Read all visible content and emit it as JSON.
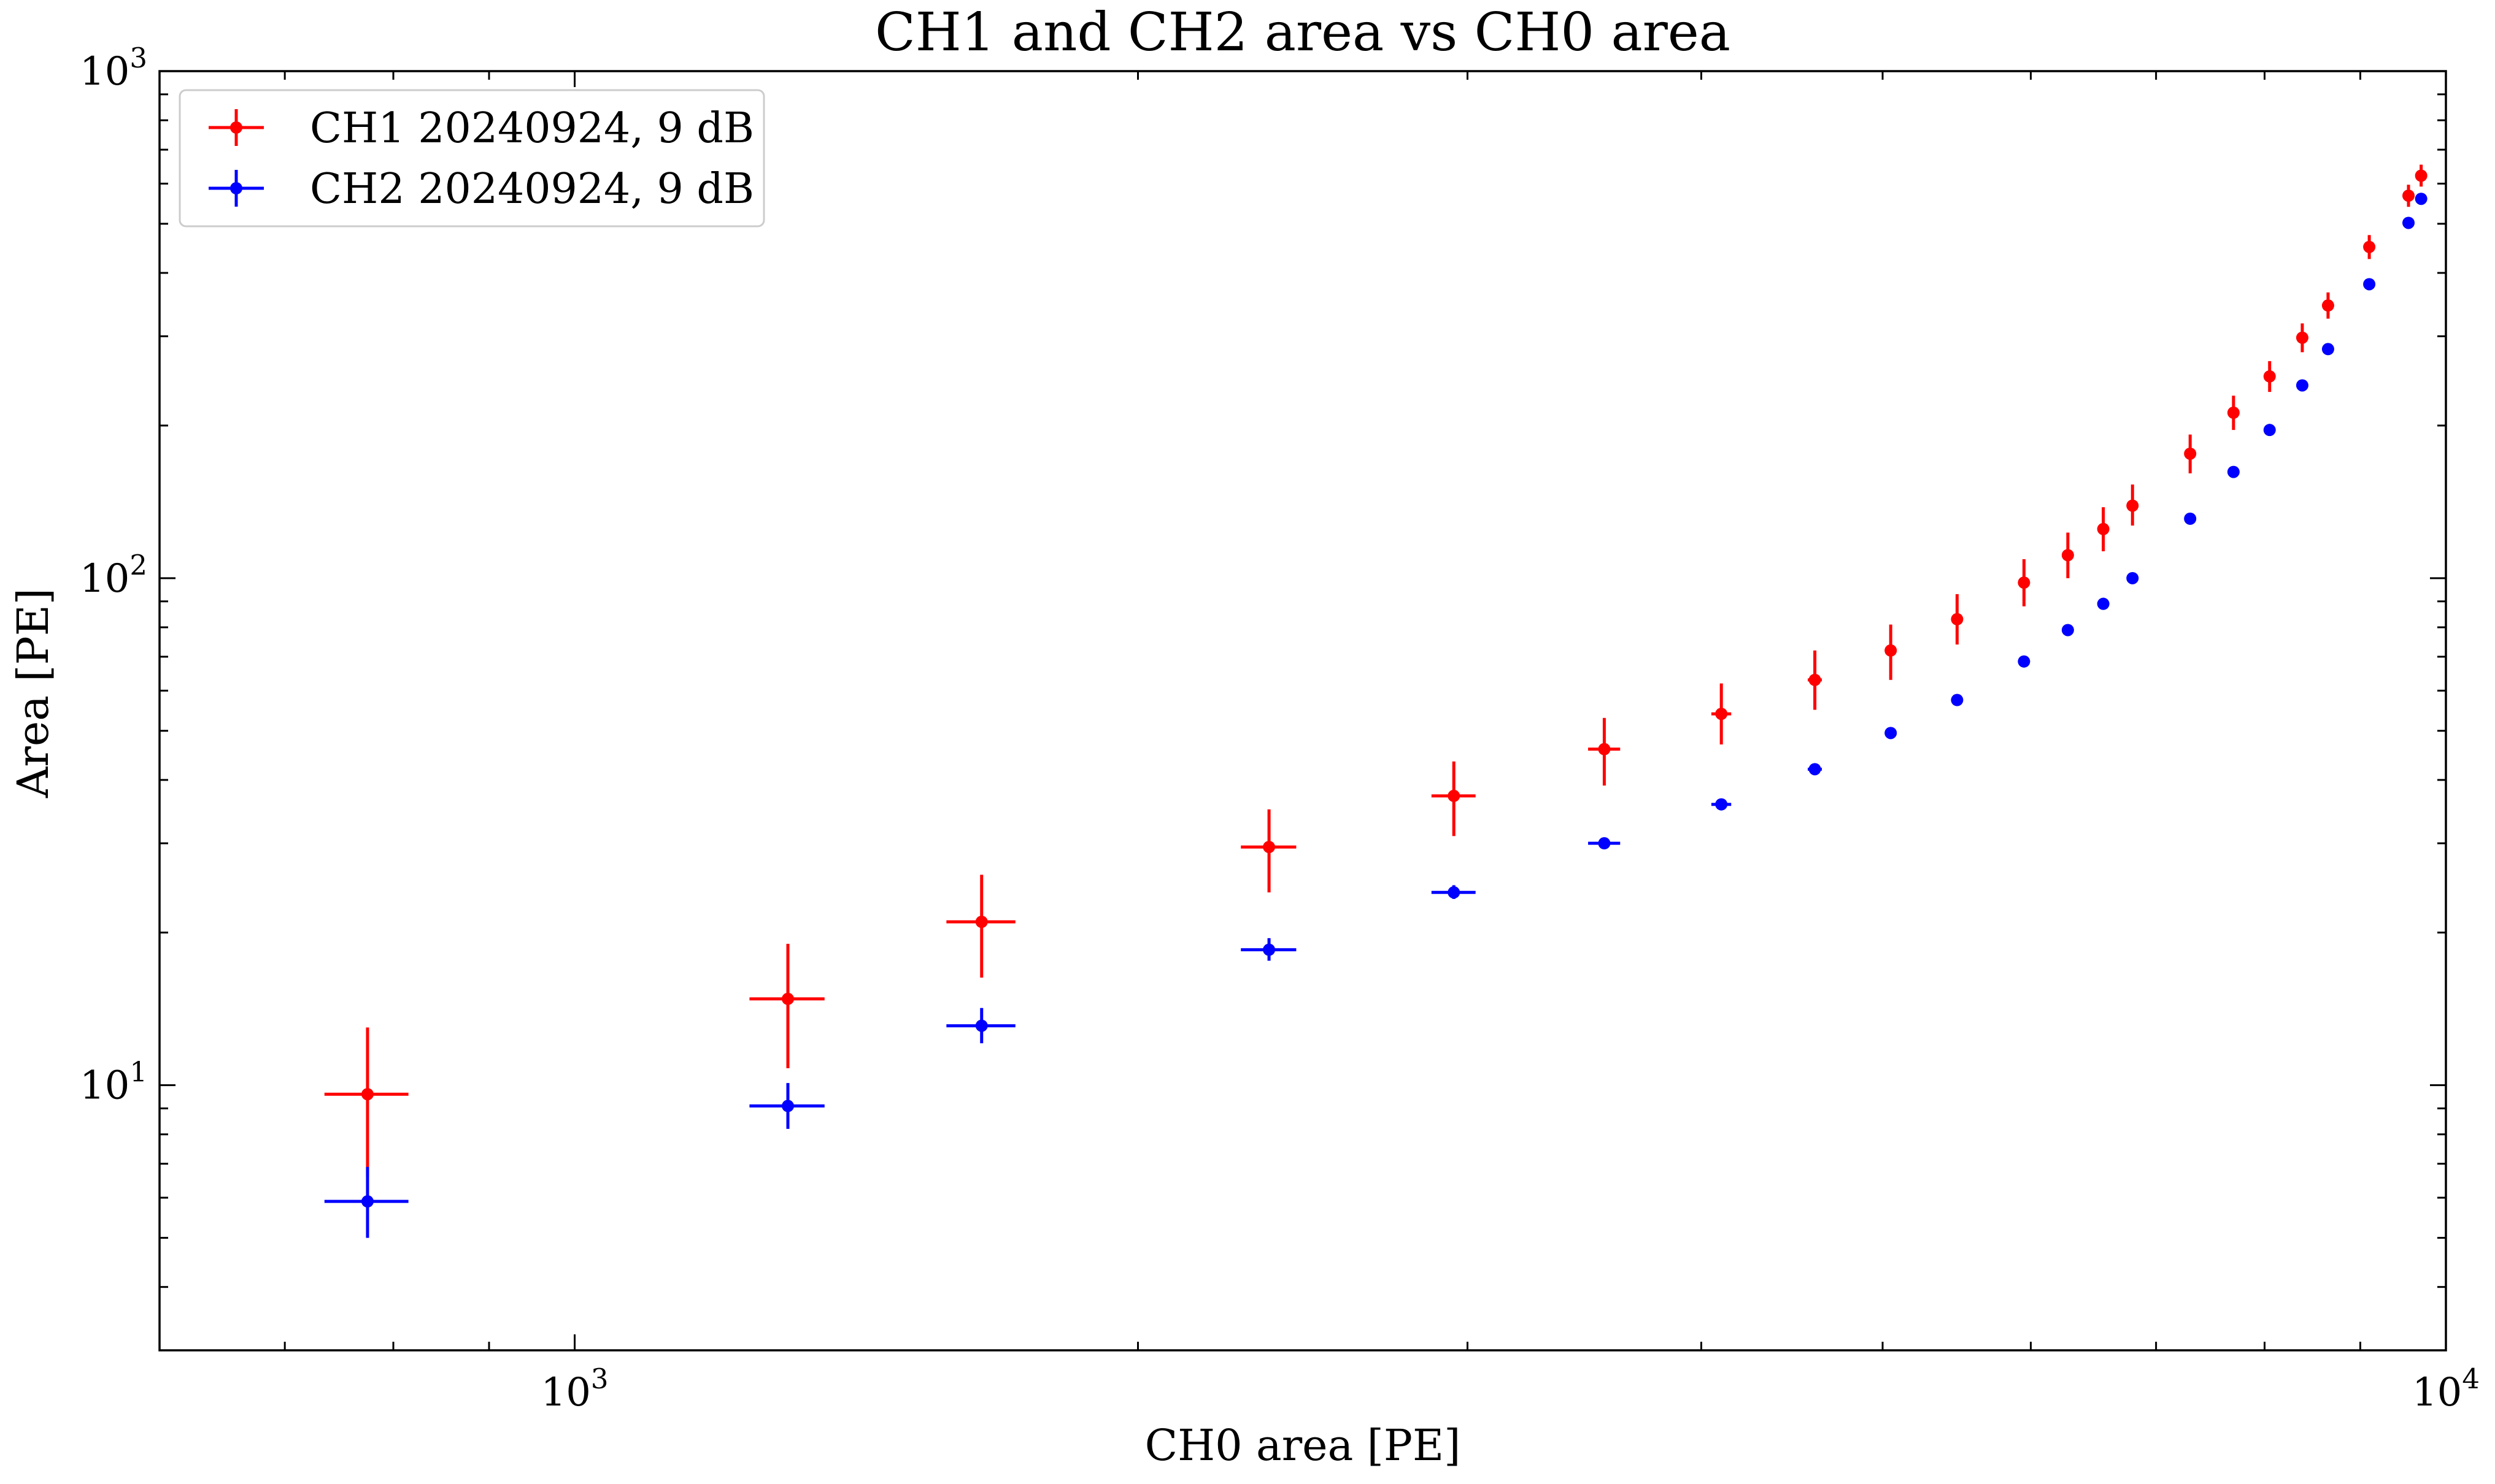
{
  "chart_data": {
    "type": "scatter",
    "title": "CH1 and CH2 area vs CH0 area",
    "xlabel": "CH0 area [PE]",
    "ylabel": "Area [PE]",
    "xscale": "log",
    "yscale": "log",
    "xlim": [
      600,
      10000
    ],
    "ylim": [
      3,
      1000
    ],
    "grid": false,
    "legend_position": "upper left",
    "x_tick_labels": [
      {
        "value": 1000,
        "base": "10",
        "exp": "3"
      },
      {
        "value": 10000,
        "base": "10",
        "exp": "4"
      }
    ],
    "y_tick_labels": [
      {
        "value": 10,
        "base": "10",
        "exp": "1"
      },
      {
        "value": 100,
        "base": "10",
        "exp": "2"
      },
      {
        "value": 1000,
        "base": "10",
        "exp": "3"
      }
    ],
    "series": [
      {
        "name": "CH1 20240924, 9 dB",
        "color": "#ff0000",
        "points": [
          {
            "x": 775,
            "y": 9.6,
            "xerr": 40,
            "ylo": 6.6,
            "yhi": 13
          },
          {
            "x": 1300,
            "y": 14.8,
            "xerr": 60,
            "ylo": 10.8,
            "yhi": 19
          },
          {
            "x": 1650,
            "y": 21,
            "xerr": 70,
            "ylo": 16.3,
            "yhi": 26
          },
          {
            "x": 2350,
            "y": 29.5,
            "xerr": 80,
            "ylo": 24,
            "yhi": 35
          },
          {
            "x": 2950,
            "y": 37.2,
            "xerr": 80,
            "ylo": 31,
            "yhi": 43.5
          },
          {
            "x": 3550,
            "y": 46,
            "xerr": 70,
            "ylo": 39,
            "yhi": 53
          },
          {
            "x": 4100,
            "y": 54,
            "xerr": 50,
            "ylo": 47,
            "yhi": 62
          },
          {
            "x": 4600,
            "y": 63,
            "xerr": 40,
            "ylo": 55,
            "yhi": 72
          },
          {
            "x": 5050,
            "y": 72,
            "xerr": 30,
            "ylo": 63,
            "yhi": 81
          },
          {
            "x": 5480,
            "y": 83,
            "xerr": 20,
            "ylo": 74,
            "yhi": 93
          },
          {
            "x": 5950,
            "y": 98,
            "xerr": 0,
            "ylo": 88,
            "yhi": 109
          },
          {
            "x": 6280,
            "y": 111,
            "xerr": 0,
            "ylo": 100,
            "yhi": 123
          },
          {
            "x": 6560,
            "y": 125,
            "xerr": 0,
            "ylo": 113,
            "yhi": 138
          },
          {
            "x": 6800,
            "y": 139,
            "xerr": 0,
            "ylo": 127,
            "yhi": 153
          },
          {
            "x": 7300,
            "y": 176,
            "xerr": 0,
            "ylo": 161,
            "yhi": 192
          },
          {
            "x": 7700,
            "y": 212,
            "xerr": 0,
            "ylo": 196,
            "yhi": 229
          },
          {
            "x": 8050,
            "y": 250,
            "xerr": 0,
            "ylo": 233,
            "yhi": 268
          },
          {
            "x": 8380,
            "y": 298,
            "xerr": 0,
            "ylo": 279,
            "yhi": 318
          },
          {
            "x": 8650,
            "y": 345,
            "xerr": 0,
            "ylo": 325,
            "yhi": 366
          },
          {
            "x": 9100,
            "y": 450,
            "xerr": 0,
            "ylo": 426,
            "yhi": 475
          },
          {
            "x": 9550,
            "y": 568,
            "xerr": 0,
            "ylo": 540,
            "yhi": 597
          },
          {
            "x": 9700,
            "y": 622,
            "xerr": 0,
            "ylo": 592,
            "yhi": 654
          }
        ]
      },
      {
        "name": "CH2 20240924, 9 dB",
        "color": "#0000ff",
        "points": [
          {
            "x": 775,
            "y": 5.9,
            "xerr": 40,
            "ylo": 5.0,
            "yhi": 6.9
          },
          {
            "x": 1300,
            "y": 9.1,
            "xerr": 60,
            "ylo": 8.2,
            "yhi": 10.1
          },
          {
            "x": 1650,
            "y": 13.1,
            "xerr": 70,
            "ylo": 12.1,
            "yhi": 14.2
          },
          {
            "x": 2350,
            "y": 18.5,
            "xerr": 80,
            "ylo": 17.6,
            "yhi": 19.5
          },
          {
            "x": 2950,
            "y": 24,
            "xerr": 80,
            "ylo": 23.3,
            "yhi": 24.8
          },
          {
            "x": 3550,
            "y": 30,
            "xerr": 70,
            "ylo": 29.3,
            "yhi": 30.7
          },
          {
            "x": 4100,
            "y": 35.8,
            "xerr": 50,
            "ylo": 35.3,
            "yhi": 36.4
          },
          {
            "x": 4600,
            "y": 42,
            "xerr": 40,
            "ylo": 41.5,
            "yhi": 42.5
          },
          {
            "x": 5050,
            "y": 49.5,
            "xerr": 30,
            "ylo": 49,
            "yhi": 50
          },
          {
            "x": 5480,
            "y": 57.5,
            "xerr": 20,
            "ylo": 57,
            "yhi": 58
          },
          {
            "x": 5950,
            "y": 68.5,
            "xerr": 0,
            "ylo": 68.5,
            "yhi": 68.5
          },
          {
            "x": 6280,
            "y": 79,
            "xerr": 0,
            "ylo": 79,
            "yhi": 79
          },
          {
            "x": 6560,
            "y": 89,
            "xerr": 0,
            "ylo": 89,
            "yhi": 89
          },
          {
            "x": 6800,
            "y": 100,
            "xerr": 0,
            "ylo": 100,
            "yhi": 100
          },
          {
            "x": 7300,
            "y": 131,
            "xerr": 0,
            "ylo": 131,
            "yhi": 131
          },
          {
            "x": 7700,
            "y": 162,
            "xerr": 0,
            "ylo": 162,
            "yhi": 162
          },
          {
            "x": 8050,
            "y": 196,
            "xerr": 0,
            "ylo": 196,
            "yhi": 196
          },
          {
            "x": 8380,
            "y": 240,
            "xerr": 0,
            "ylo": 240,
            "yhi": 240
          },
          {
            "x": 8650,
            "y": 283,
            "xerr": 0,
            "ylo": 283,
            "yhi": 283
          },
          {
            "x": 9100,
            "y": 380,
            "xerr": 0,
            "ylo": 380,
            "yhi": 380
          },
          {
            "x": 9550,
            "y": 502,
            "xerr": 0,
            "ylo": 502,
            "yhi": 502
          },
          {
            "x": 9700,
            "y": 560,
            "xerr": 0,
            "ylo": 560,
            "yhi": 560
          }
        ]
      }
    ]
  }
}
